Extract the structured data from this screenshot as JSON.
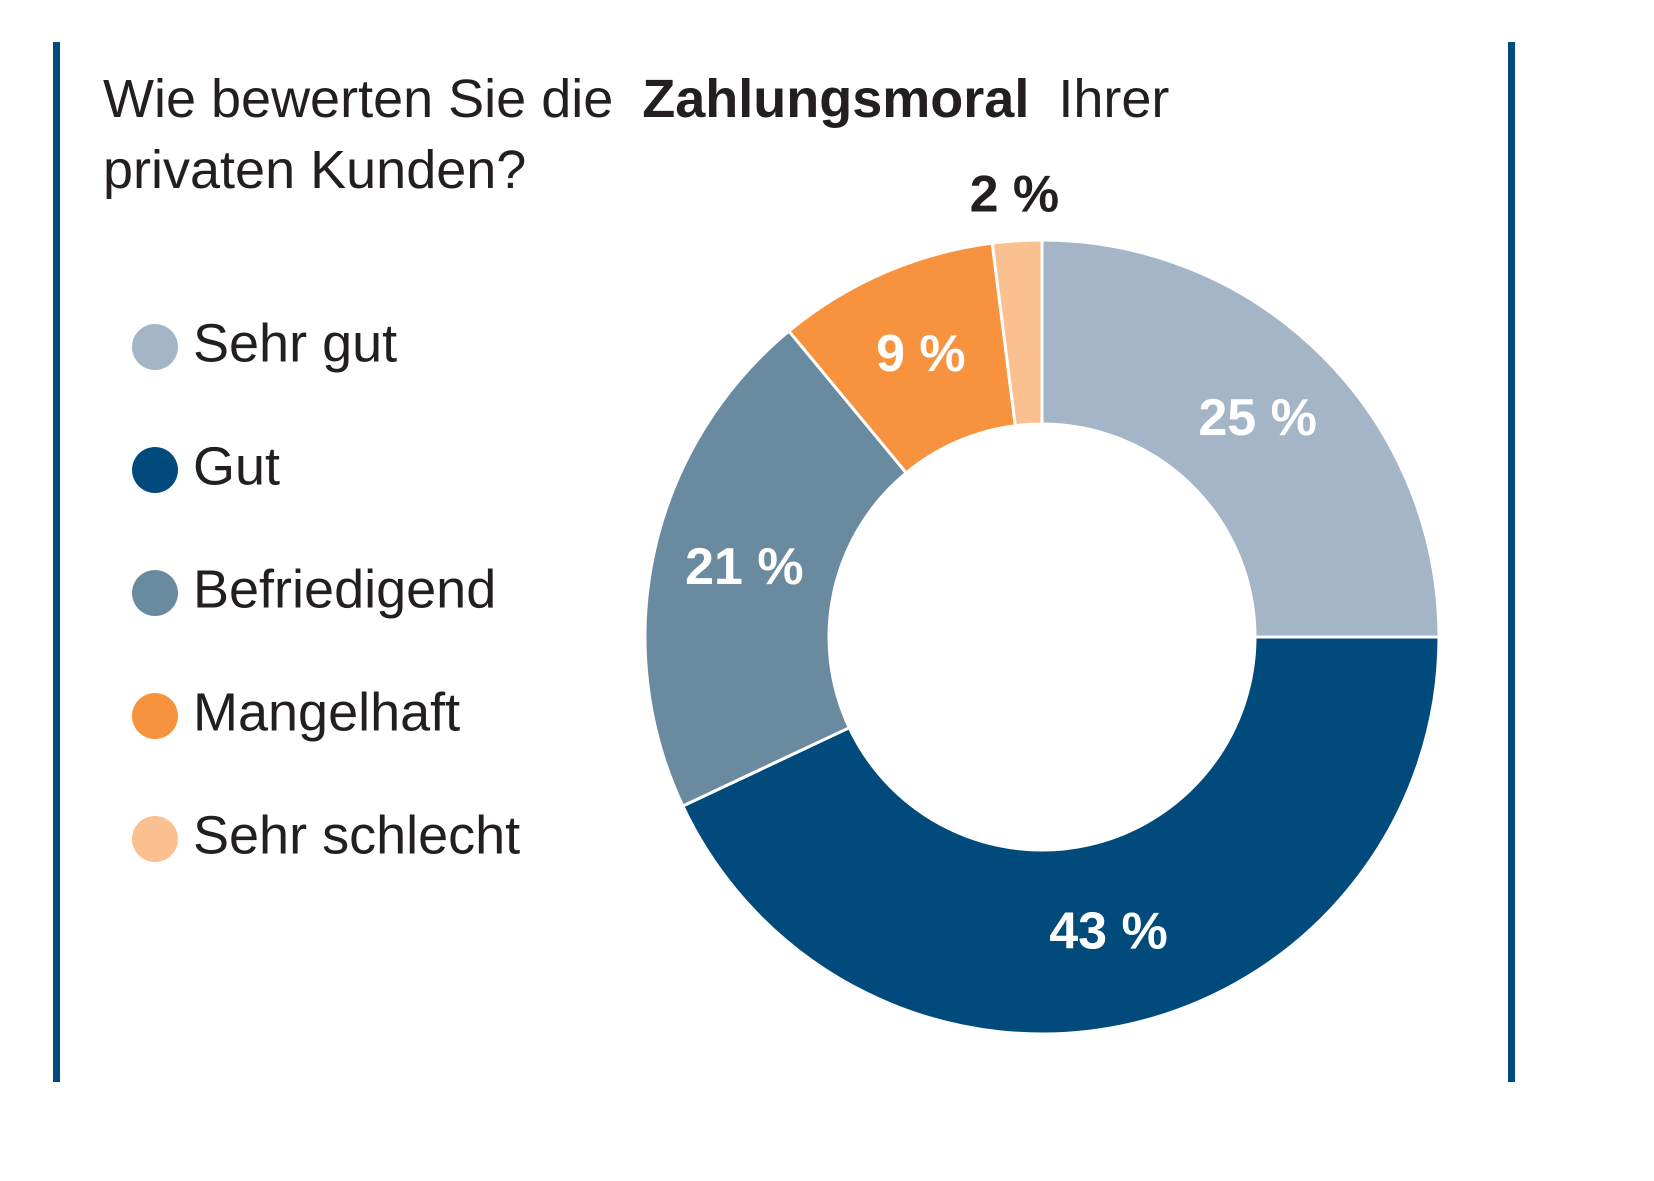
{
  "chart_data": {
    "type": "donut",
    "title": [
      "Wie bewerten Sie die",
      "Zahlungsmoral",
      "Ihrer",
      "privaten Kunden?"
    ],
    "categories": [
      "Sehr gut",
      "Gut",
      "Befriedigend",
      "Mangelhaft",
      "Sehr schlecht"
    ],
    "values": [
      25,
      43,
      21,
      9,
      2
    ],
    "value_labels": [
      "25 %",
      "43 %",
      "21 %",
      "9 %",
      "2 %"
    ],
    "colors": [
      "#a3b5c7",
      "#004b7c",
      "#6a8aa0",
      "#f7933e",
      "#fbc08f"
    ],
    "legend": "left"
  }
}
